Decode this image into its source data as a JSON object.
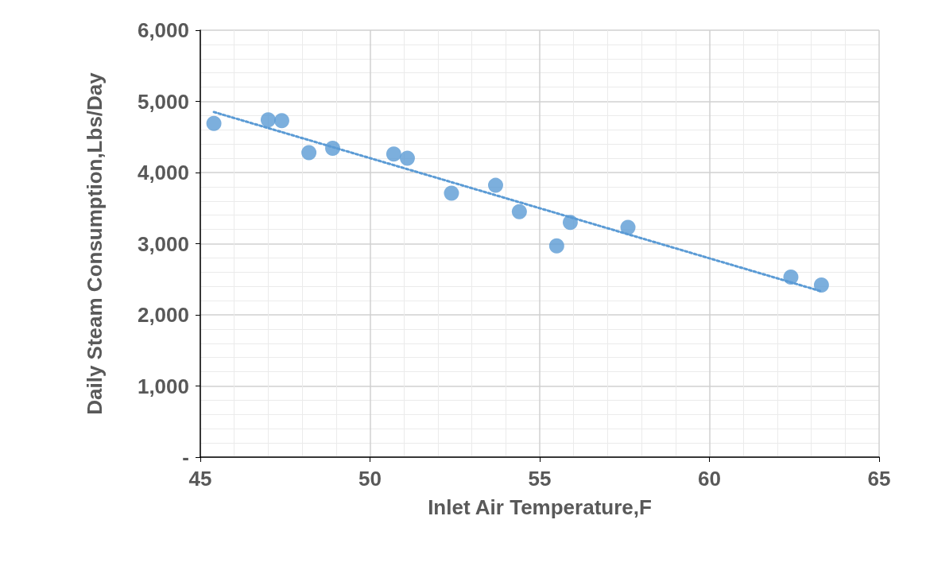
{
  "chart_data": {
    "type": "scatter",
    "xlabel": "Inlet Air Temperature,F",
    "ylabel": "Daily Steam Consumption,Lbs/Day",
    "xlim": [
      45,
      65
    ],
    "xticks": [
      45,
      50,
      55,
      60,
      65
    ],
    "ylim": [
      0,
      6000
    ],
    "yticks": [
      {
        "value": 0,
        "label": "-"
      },
      {
        "value": 1000,
        "label": "1,000"
      },
      {
        "value": 2000,
        "label": "2,000"
      },
      {
        "value": 3000,
        "label": "3,000"
      },
      {
        "value": 4000,
        "label": "4,000"
      },
      {
        "value": 5000,
        "label": "5,000"
      },
      {
        "value": 6000,
        "label": "6,000"
      }
    ],
    "grid": true,
    "series": [
      {
        "type": "scatter",
        "color": "#5b9bd5",
        "marker": "circle",
        "x": [
          45.4,
          47.0,
          47.4,
          48.2,
          48.9,
          50.7,
          51.1,
          52.4,
          53.7,
          54.4,
          55.5,
          55.9,
          57.6,
          62.4,
          63.3
        ],
        "values": [
          4690,
          4740,
          4730,
          4280,
          4340,
          4260,
          4200,
          3710,
          3820,
          3450,
          2970,
          3300,
          3230,
          2530,
          2420
        ]
      },
      {
        "type": "line",
        "color": "#5b9bd5",
        "marker": "none",
        "line_style": "dotted",
        "x": [
          45.4,
          63.3
        ],
        "values": [
          4850,
          2330
        ]
      }
    ]
  }
}
